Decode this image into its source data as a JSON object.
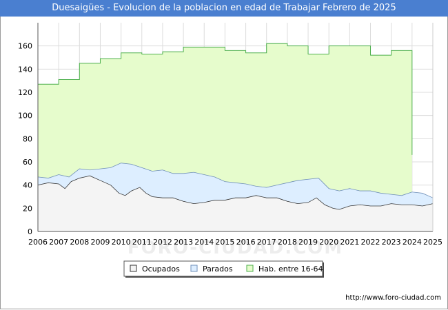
{
  "chart_data": {
    "type": "area",
    "title": "Duesaigües - Evolucion de la poblacion en edad de Trabajar Febrero de 2025",
    "xlabel": "",
    "ylabel": "",
    "x_ticks": [
      "2006",
      "2007",
      "2008",
      "2009",
      "2010",
      "2011",
      "2012",
      "2013",
      "2014",
      "2015",
      "2016",
      "2017",
      "2018",
      "2019",
      "2020",
      "2021",
      "2022",
      "2023",
      "2024",
      "2025"
    ],
    "ylim": [
      0,
      180
    ],
    "y_ticks": [
      0,
      20,
      40,
      60,
      80,
      100,
      120,
      140,
      160
    ],
    "legend_position": "bottom",
    "series": [
      {
        "name": "Ocupados",
        "color": "#f4f4f4",
        "stroke": "#333333",
        "points": [
          [
            2006,
            40
          ],
          [
            2006.5,
            42
          ],
          [
            2007,
            41
          ],
          [
            2007.3,
            37
          ],
          [
            2007.6,
            43
          ],
          [
            2008,
            46
          ],
          [
            2008.5,
            48
          ],
          [
            2009,
            44
          ],
          [
            2009.5,
            40
          ],
          [
            2009.9,
            33
          ],
          [
            2010.2,
            31
          ],
          [
            2010.5,
            35
          ],
          [
            2010.9,
            38
          ],
          [
            2011.2,
            33
          ],
          [
            2011.5,
            30
          ],
          [
            2012,
            29
          ],
          [
            2012.5,
            29
          ],
          [
            2013,
            26
          ],
          [
            2013.5,
            24
          ],
          [
            2014,
            25
          ],
          [
            2014.5,
            27
          ],
          [
            2015,
            27
          ],
          [
            2015.5,
            29
          ],
          [
            2016,
            29
          ],
          [
            2016.5,
            31
          ],
          [
            2017,
            29
          ],
          [
            2017.5,
            29
          ],
          [
            2018,
            26
          ],
          [
            2018.5,
            24
          ],
          [
            2019,
            25
          ],
          [
            2019.4,
            29
          ],
          [
            2019.8,
            23
          ],
          [
            2020.2,
            20
          ],
          [
            2020.5,
            19
          ],
          [
            2021,
            22
          ],
          [
            2021.5,
            23
          ],
          [
            2022,
            22
          ],
          [
            2022.5,
            22
          ],
          [
            2023,
            24
          ],
          [
            2023.5,
            23
          ],
          [
            2024,
            23
          ],
          [
            2024.5,
            22
          ],
          [
            2025,
            24
          ]
        ]
      },
      {
        "name": "Parados",
        "color": "#ddeeff",
        "stroke": "#6f8fb8",
        "points": [
          [
            2006,
            47
          ],
          [
            2006.5,
            46
          ],
          [
            2007,
            49
          ],
          [
            2007.5,
            47
          ],
          [
            2008,
            54
          ],
          [
            2008.5,
            53
          ],
          [
            2009,
            54
          ],
          [
            2009.5,
            55
          ],
          [
            2010,
            59
          ],
          [
            2010.5,
            58
          ],
          [
            2011,
            55
          ],
          [
            2011.5,
            52
          ],
          [
            2012,
            53
          ],
          [
            2012.5,
            50
          ],
          [
            2013,
            50
          ],
          [
            2013.5,
            51
          ],
          [
            2014,
            49
          ],
          [
            2014.5,
            47
          ],
          [
            2015,
            43
          ],
          [
            2015.5,
            42
          ],
          [
            2016,
            41
          ],
          [
            2016.5,
            39
          ],
          [
            2017,
            38
          ],
          [
            2017.5,
            40
          ],
          [
            2018,
            42
          ],
          [
            2018.5,
            44
          ],
          [
            2019,
            45
          ],
          [
            2019.5,
            46
          ],
          [
            2020,
            37
          ],
          [
            2020.5,
            35
          ],
          [
            2021,
            37
          ],
          [
            2021.5,
            35
          ],
          [
            2022,
            35
          ],
          [
            2022.5,
            33
          ],
          [
            2023,
            32
          ],
          [
            2023.5,
            31
          ],
          [
            2024,
            34
          ],
          [
            2024.5,
            33
          ],
          [
            2025,
            29
          ]
        ]
      },
      {
        "name": "Hab. entre 16-64",
        "color": "#e6fccc",
        "stroke": "#4caf4c",
        "points": [
          [
            2006,
            127
          ],
          [
            2007,
            131
          ],
          [
            2008,
            145
          ],
          [
            2009,
            149
          ],
          [
            2010,
            154
          ],
          [
            2011,
            153
          ],
          [
            2012,
            155
          ],
          [
            2013,
            159
          ],
          [
            2014,
            159
          ],
          [
            2015,
            156
          ],
          [
            2016,
            154
          ],
          [
            2017,
            162
          ],
          [
            2018,
            160
          ],
          [
            2019,
            153
          ],
          [
            2020,
            160
          ],
          [
            2021,
            160
          ],
          [
            2022,
            152
          ],
          [
            2023,
            156
          ],
          [
            2024,
            66
          ]
        ]
      }
    ]
  },
  "legend": {
    "items": [
      "Ocupados",
      "Parados",
      "Hab. entre 16-64"
    ]
  },
  "source_text": "http://www.foro-ciudad.com",
  "watermark": "FORO-CIUDAD.COM"
}
